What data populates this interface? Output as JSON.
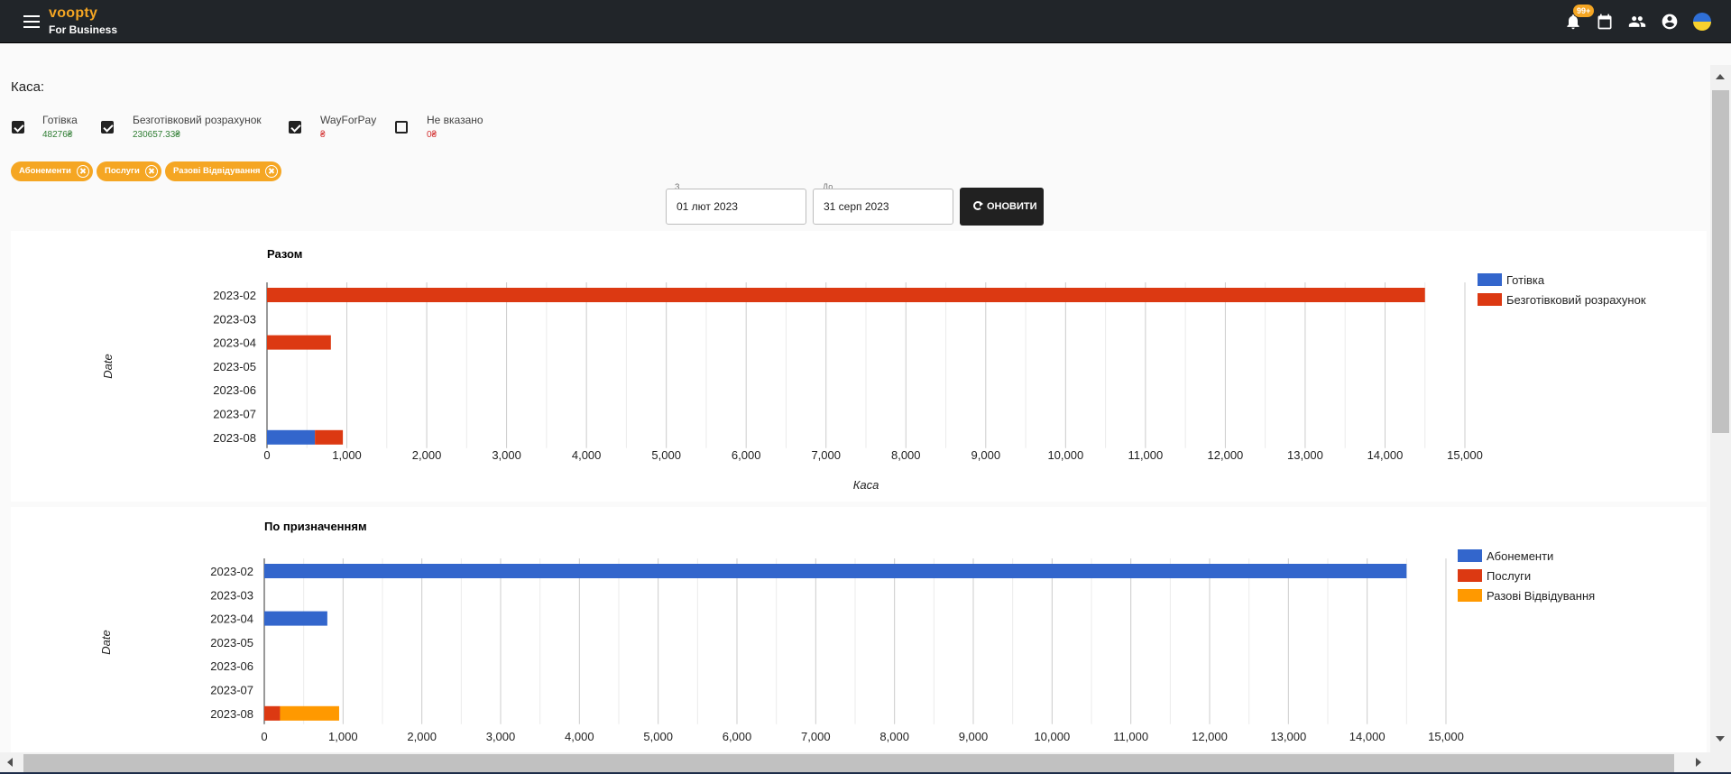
{
  "header": {
    "brand_name": "voopty",
    "brand_sub": "For Business",
    "notifications_badge": "99+",
    "icons": [
      "menu-icon",
      "bell-icon",
      "calendar-icon",
      "users-icon",
      "account-icon",
      "ukraine-flag-icon"
    ]
  },
  "filters": {
    "cash_label": "Каса:",
    "methods": [
      {
        "label": "Готівка",
        "amount": "48276₴",
        "checked": true,
        "amount_color": "green"
      },
      {
        "label": "Безготівковий розрахунок",
        "amount": "230657.33₴",
        "checked": true,
        "amount_color": "green"
      },
      {
        "label": "WayForPay",
        "amount": "₴",
        "checked": true,
        "amount_color": "red"
      },
      {
        "label": "Не вказано",
        "amount": "0₴",
        "checked": false,
        "amount_color": "red"
      }
    ],
    "chips": [
      "Абонементи",
      "Послуги",
      "Разові Відвідування"
    ],
    "date_from_label": "З",
    "date_from": "01 лют 2023",
    "date_to_label": "До",
    "date_to": "31 серп 2023",
    "refresh_label": "ОНОВИТИ"
  },
  "colors": {
    "accent": "#f5a623",
    "topbar": "#212529",
    "blue": "#3366cc",
    "red": "#dc3912",
    "orange": "#ff9900"
  },
  "chart_data": [
    {
      "type": "bar",
      "orientation": "horizontal",
      "stacked": true,
      "title": "Разом",
      "xlabel": "Каса",
      "ylabel": "Date",
      "categories": [
        "2023-02",
        "2023-03",
        "2023-04",
        "2023-05",
        "2023-06",
        "2023-07",
        "2023-08"
      ],
      "xlim": [
        0,
        15000
      ],
      "ticks": [
        "0",
        "1,000",
        "2,000",
        "3,000",
        "4,000",
        "5,000",
        "6,000",
        "7,000",
        "8,000",
        "9,000",
        "10,000",
        "11,000",
        "12,000",
        "13,000",
        "14,000",
        "15,000"
      ],
      "grid": true,
      "legend_position": "right",
      "series": [
        {
          "name": "Готівка",
          "color": "#3366cc",
          "values": [
            0,
            0,
            0,
            0,
            0,
            0,
            600
          ]
        },
        {
          "name": "Безготівковий розрахунок",
          "color": "#dc3912",
          "values": [
            14500,
            0,
            800,
            0,
            0,
            0,
            350
          ]
        }
      ]
    },
    {
      "type": "bar",
      "orientation": "horizontal",
      "stacked": true,
      "title": "По призначенням",
      "xlabel": "",
      "ylabel": "Date",
      "categories": [
        "2023-02",
        "2023-03",
        "2023-04",
        "2023-05",
        "2023-06",
        "2023-07",
        "2023-08"
      ],
      "xlim": [
        0,
        15000
      ],
      "ticks": [
        "0",
        "1,000",
        "2,000",
        "3,000",
        "4,000",
        "5,000",
        "6,000",
        "7,000",
        "8,000",
        "9,000",
        "10,000",
        "11,000",
        "12,000",
        "13,000",
        "14,000",
        "15,000"
      ],
      "grid": true,
      "legend_position": "right",
      "series": [
        {
          "name": "Абонементи",
          "color": "#3366cc",
          "values": [
            14500,
            0,
            800,
            0,
            0,
            0,
            0
          ]
        },
        {
          "name": "Послуги",
          "color": "#dc3912",
          "values": [
            0,
            0,
            0,
            0,
            0,
            0,
            200
          ]
        },
        {
          "name": "Разові Відвідування",
          "color": "#ff9900",
          "values": [
            0,
            0,
            0,
            0,
            0,
            0,
            750
          ]
        }
      ]
    }
  ]
}
